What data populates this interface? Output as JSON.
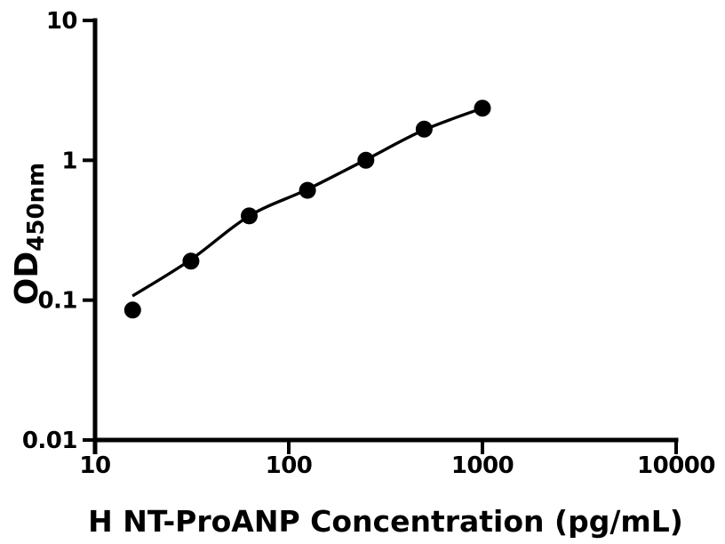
{
  "chart_data": {
    "type": "scatter",
    "title": "",
    "xlabel": "H NT-ProANP Concentration (pg/mL)",
    "ylabel": "OD450nm",
    "ylabel_main": "OD",
    "ylabel_sub": "450nm",
    "x_scale": "log10",
    "y_scale": "log10",
    "xlim": [
      10,
      10000
    ],
    "ylim": [
      0.01,
      10
    ],
    "x_tick_labels": [
      "10",
      "100",
      "1000",
      "10000"
    ],
    "y_tick_labels": [
      "0.01",
      "0.1",
      "1",
      "10"
    ],
    "grid": false,
    "legend": false,
    "series": [
      {
        "name": "standard-data-points",
        "kind": "scatter",
        "marker": "filled-circle",
        "color": "#000000",
        "points": [
          {
            "x": 15.625,
            "y": 0.085
          },
          {
            "x": 31.25,
            "y": 0.19
          },
          {
            "x": 62.5,
            "y": 0.4
          },
          {
            "x": 125,
            "y": 0.61
          },
          {
            "x": 250,
            "y": 1.0
          },
          {
            "x": 500,
            "y": 1.67
          },
          {
            "x": 1000,
            "y": 2.36
          }
        ]
      },
      {
        "name": "fit-curve",
        "kind": "line",
        "color": "#000000",
        "points": [
          {
            "x": 15.6,
            "y": 0.107
          },
          {
            "x": 31.25,
            "y": 0.195
          },
          {
            "x": 62.5,
            "y": 0.4
          },
          {
            "x": 125,
            "y": 0.62
          },
          {
            "x": 250,
            "y": 1.01
          },
          {
            "x": 500,
            "y": 1.65
          },
          {
            "x": 1000,
            "y": 2.36
          }
        ]
      }
    ],
    "colors": {
      "axis": "#000000",
      "marker": "#000000",
      "curve": "#000000",
      "background": "#ffffff"
    }
  }
}
